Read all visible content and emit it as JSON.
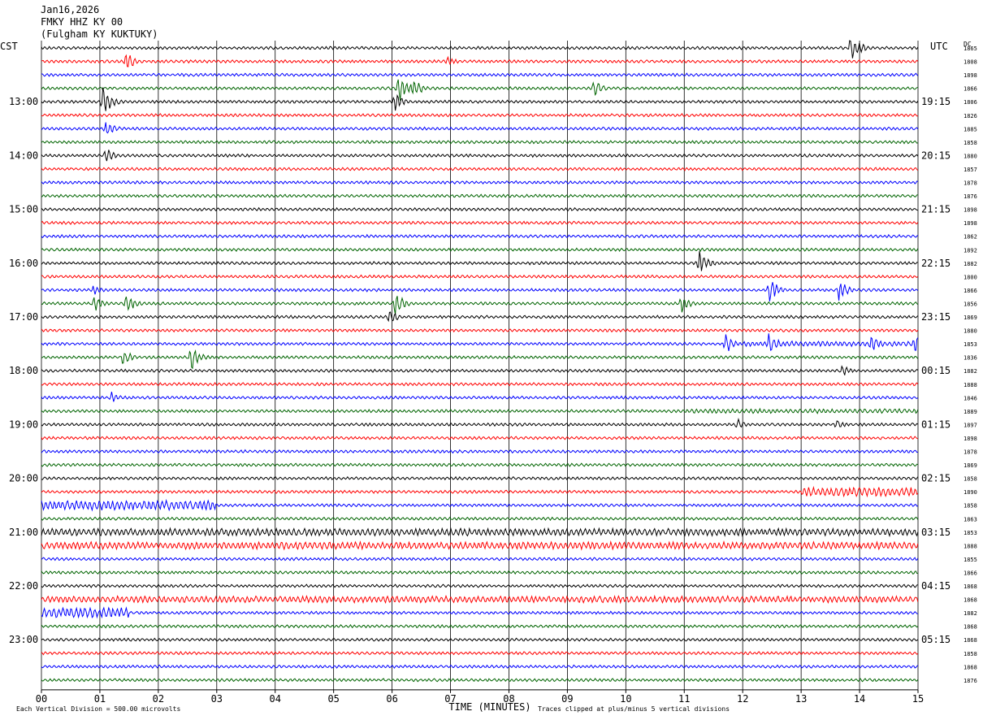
{
  "header": {
    "date": "Jan16,2026",
    "station": "FMKY HHZ KY 00",
    "location": "(Fulgham KY KUKTUKY)"
  },
  "labels": {
    "left_tz": "CST",
    "right_tz": "UTC",
    "right_col_header": "DC",
    "xlabel": "TIME (MINUTES)",
    "scale_note": "Each Vertical Division =  500.00 microvolts",
    "clip_note": "Traces clipped at plus/minus 5 vertical divisions"
  },
  "colors": {
    "trace_cycle": [
      "#000000",
      "#ff0000",
      "#0000ff",
      "#006400"
    ],
    "grid": "#000000"
  },
  "chart_data": {
    "type": "line",
    "title": "FMKY HHZ KY 00",
    "xlabel": "TIME (MINUTES)",
    "xlim": [
      0,
      15
    ],
    "x_ticks": [
      "00",
      "01",
      "02",
      "03",
      "04",
      "05",
      "06",
      "07",
      "08",
      "09",
      "10",
      "11",
      "12",
      "13",
      "14",
      "15"
    ],
    "rows_per_hour": 4,
    "minutes_per_row": 15,
    "num_rows": 48,
    "left_hour_labels": [
      "13:00",
      "14:00",
      "15:00",
      "16:00",
      "17:00",
      "18:00",
      "19:00",
      "20:00",
      "21:00",
      "22:00",
      "23:00"
    ],
    "right_hour_labels": [
      "19:15",
      "20:15",
      "21:15",
      "22:15",
      "23:15",
      "00:15",
      "01:15",
      "02:15",
      "03:15",
      "04:15",
      "05:15"
    ],
    "hour_label_rows": [
      4,
      8,
      12,
      16,
      20,
      24,
      28,
      32,
      36,
      40,
      44
    ],
    "dc_offsets": [
      "1865",
      "1808",
      "1898",
      "1866",
      "1806",
      "1826",
      "1885",
      "1858",
      "1880",
      "1857",
      "1878",
      "1876",
      "1898",
      "1898",
      "1862",
      "1892",
      "1882",
      "1800",
      "1866",
      "1856",
      "1869",
      "1880",
      "1853",
      "1836",
      "1882",
      "1888",
      "1846",
      "1889",
      "1897",
      "1898",
      "1878",
      "1869",
      "1858",
      "1890",
      "1858",
      "1863",
      "1853",
      "1888",
      "1855",
      "1866",
      "1868",
      "1868",
      "1882",
      "1868",
      "1868",
      "1858",
      "1868",
      "1876"
    ],
    "base_amplitude_div": 0.45,
    "events": [
      {
        "row": 0,
        "minute": 13.85,
        "amp": 2.2
      },
      {
        "row": 1,
        "minute": 1.45,
        "amp": 1.6
      },
      {
        "row": 1,
        "minute": 6.95,
        "amp": 0.8
      },
      {
        "row": 3,
        "minute": 6.1,
        "amp": 2.2
      },
      {
        "row": 3,
        "minute": 6.35,
        "amp": 1.6
      },
      {
        "row": 3,
        "minute": 9.45,
        "amp": 1.6
      },
      {
        "row": 4,
        "minute": 1.05,
        "amp": 2.6
      },
      {
        "row": 4,
        "minute": 6.05,
        "amp": 1.6
      },
      {
        "row": 6,
        "minute": 1.1,
        "amp": 1.4
      },
      {
        "row": 8,
        "minute": 1.1,
        "amp": 1.2
      },
      {
        "row": 16,
        "minute": 11.25,
        "amp": 2.0
      },
      {
        "row": 18,
        "minute": 12.45,
        "amp": 1.8
      },
      {
        "row": 18,
        "minute": 13.65,
        "amp": 1.6
      },
      {
        "row": 18,
        "minute": 0.9,
        "amp": 0.8
      },
      {
        "row": 19,
        "minute": 0.9,
        "amp": 1.3
      },
      {
        "row": 19,
        "minute": 1.45,
        "amp": 1.6
      },
      {
        "row": 19,
        "minute": 6.05,
        "amp": 1.8
      },
      {
        "row": 19,
        "minute": 10.95,
        "amp": 1.4
      },
      {
        "row": 20,
        "minute": 5.95,
        "amp": 1.2
      },
      {
        "row": 22,
        "minute": 11.7,
        "amp": 1.6
      },
      {
        "row": 22,
        "minute": 12.45,
        "amp": 1.7
      },
      {
        "row": 22,
        "minute": 14.2,
        "amp": 1.5
      },
      {
        "row": 22,
        "minute": 14.95,
        "amp": 2.0
      },
      {
        "row": 23,
        "minute": 1.4,
        "amp": 1.2
      },
      {
        "row": 23,
        "minute": 2.55,
        "amp": 2.0
      },
      {
        "row": 24,
        "minute": 13.7,
        "amp": 0.9
      },
      {
        "row": 26,
        "minute": 1.2,
        "amp": 0.8
      },
      {
        "row": 28,
        "minute": 11.9,
        "amp": 0.9
      },
      {
        "row": 28,
        "minute": 13.6,
        "amp": 1.0
      }
    ],
    "noisy_spans": [
      {
        "row": 33,
        "from": 13.0,
        "to": 15.0,
        "amp": 1.4
      },
      {
        "row": 34,
        "from": 0.0,
        "to": 3.0,
        "amp": 1.5
      },
      {
        "row": 36,
        "from": 0.0,
        "to": 15.0,
        "amp": 1.1
      },
      {
        "row": 37,
        "from": 0.0,
        "to": 15.0,
        "amp": 1.1
      },
      {
        "row": 41,
        "from": 0.0,
        "to": 15.0,
        "amp": 1.0
      },
      {
        "row": 42,
        "from": 0.0,
        "to": 1.5,
        "amp": 1.5
      },
      {
        "row": 22,
        "from": 12.0,
        "to": 15.0,
        "amp": 0.8
      },
      {
        "row": 27,
        "from": 11.0,
        "to": 15.0,
        "amp": 0.7
      }
    ]
  }
}
